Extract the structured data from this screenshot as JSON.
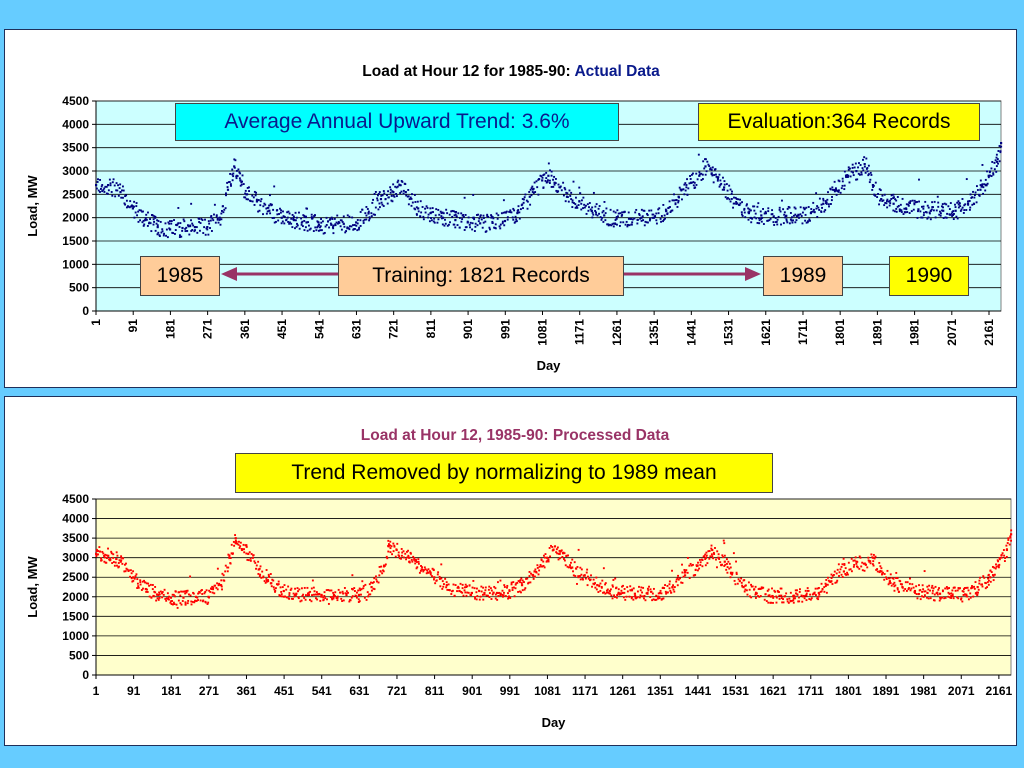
{
  "colors": {
    "slide_background": "#66ccff",
    "top_plot_area": "#ccffff",
    "bottom_plot_area": "#ffffcc",
    "top_series": "#000080",
    "bottom_series": "#ff0000",
    "arrow": "#993366",
    "bottom_title": "#993366"
  },
  "annotations": {
    "trend": "Average Annual Upward Trend: 3.6%",
    "evaluation": "Evaluation:364 Records",
    "y1985": "1985",
    "training": "Training: 1821 Records",
    "y1989": "1989",
    "y1990": "1990",
    "trend_removed": "Trend Removed by normalizing to 1989 mean"
  },
  "chart_data": [
    {
      "type": "scatter",
      "title_main": "Load at Hour 12 for 1985-90:",
      "title_accent": "Actual Data",
      "xlabel": "Day",
      "ylabel": "Load, MW",
      "ylim": [
        0,
        4500
      ],
      "yticks": [
        0,
        500,
        1000,
        1500,
        2000,
        2500,
        3000,
        3500,
        4000,
        4500
      ],
      "xticks": [
        1,
        91,
        181,
        271,
        361,
        451,
        541,
        631,
        721,
        811,
        901,
        991,
        1081,
        1171,
        1261,
        1351,
        1441,
        1531,
        1621,
        1711,
        1801,
        1891,
        1981,
        2071,
        2161
      ],
      "xlim": [
        1,
        2190
      ],
      "grid": true,
      "series": [
        {
          "color": "#000080",
          "x": [
            1,
            30,
            60,
            90,
            120,
            150,
            180,
            210,
            240,
            270,
            300,
            320,
            335,
            350,
            365,
            390,
            420,
            450,
            480,
            510,
            540,
            570,
            600,
            630,
            660,
            690,
            720,
            735,
            750,
            780,
            810,
            840,
            870,
            900,
            930,
            960,
            990,
            1020,
            1050,
            1080,
            1095,
            1110,
            1140,
            1170,
            1200,
            1230,
            1260,
            1290,
            1320,
            1350,
            1380,
            1410,
            1440,
            1460,
            1475,
            1490,
            1505,
            1520,
            1550,
            1580,
            1610,
            1640,
            1670,
            1700,
            1730,
            1760,
            1790,
            1820,
            1840,
            1860,
            1880,
            1900,
            1930,
            1960,
            1990,
            2020,
            2050,
            2080,
            2110,
            2140,
            2160,
            2180,
            2190
          ],
          "y": [
            2700,
            2700,
            2550,
            2200,
            1950,
            1800,
            1750,
            1780,
            1800,
            1800,
            2000,
            2600,
            3100,
            2800,
            2500,
            2350,
            2150,
            2000,
            1950,
            1900,
            1850,
            1850,
            1870,
            1900,
            2100,
            2400,
            2550,
            2700,
            2550,
            2200,
            2100,
            2000,
            1950,
            1900,
            1880,
            1890,
            1930,
            2100,
            2450,
            2800,
            2900,
            2750,
            2450,
            2350,
            2150,
            2050,
            1980,
            1980,
            2000,
            2000,
            2150,
            2450,
            2750,
            2900,
            3100,
            2950,
            2850,
            2650,
            2300,
            2100,
            2050,
            2030,
            2040,
            2050,
            2100,
            2300,
            2600,
            2900,
            3000,
            3150,
            2700,
            2400,
            2300,
            2200,
            2180,
            2150,
            2150,
            2150,
            2300,
            2600,
            2900,
            3200,
            3600
          ]
        }
      ]
    },
    {
      "type": "scatter",
      "title": "Load at Hour 12, 1985-90: Processed Data",
      "xlabel": "Day",
      "ylabel": "Load, MW",
      "ylim": [
        0,
        4500
      ],
      "yticks": [
        0,
        500,
        1000,
        1500,
        2000,
        2500,
        3000,
        3500,
        4000,
        4500
      ],
      "xticks": [
        1,
        91,
        181,
        271,
        361,
        451,
        541,
        631,
        721,
        811,
        901,
        991,
        1081,
        1171,
        1261,
        1351,
        1441,
        1531,
        1621,
        1711,
        1801,
        1891,
        1981,
        2071,
        2161
      ],
      "xlim": [
        1,
        2190
      ],
      "grid": true,
      "series": [
        {
          "color": "#ff0000",
          "x": [
            1,
            30,
            60,
            90,
            120,
            150,
            180,
            210,
            240,
            270,
            300,
            320,
            335,
            350,
            365,
            390,
            420,
            450,
            480,
            510,
            540,
            570,
            600,
            630,
            660,
            690,
            700,
            720,
            750,
            780,
            810,
            840,
            870,
            900,
            930,
            960,
            990,
            1020,
            1050,
            1080,
            1095,
            1110,
            1140,
            1170,
            1200,
            1230,
            1260,
            1290,
            1320,
            1350,
            1380,
            1410,
            1440,
            1460,
            1475,
            1490,
            1505,
            1520,
            1550,
            1580,
            1610,
            1640,
            1670,
            1700,
            1730,
            1760,
            1790,
            1820,
            1840,
            1860,
            1880,
            1900,
            1930,
            1960,
            1990,
            2020,
            2050,
            2080,
            2110,
            2140,
            2160,
            2180,
            2190
          ],
          "y": [
            3100,
            3050,
            2900,
            2500,
            2200,
            2050,
            1980,
            1980,
            2000,
            2000,
            2300,
            3000,
            3500,
            3200,
            3100,
            2700,
            2350,
            2150,
            2080,
            2050,
            2050,
            2050,
            2050,
            2050,
            2250,
            2800,
            3300,
            3200,
            3000,
            2700,
            2500,
            2300,
            2150,
            2100,
            2100,
            2100,
            2150,
            2300,
            2650,
            3000,
            3200,
            3100,
            2750,
            2550,
            2300,
            2150,
            2100,
            2080,
            2100,
            2100,
            2250,
            2550,
            2800,
            3000,
            3200,
            3000,
            2900,
            2600,
            2250,
            2080,
            2030,
            2030,
            2030,
            2040,
            2100,
            2400,
            2650,
            2900,
            2850,
            3000,
            2650,
            2400,
            2250,
            2150,
            2100,
            2080,
            2060,
            2060,
            2250,
            2500,
            2800,
            3200,
            3600
          ]
        }
      ]
    }
  ]
}
